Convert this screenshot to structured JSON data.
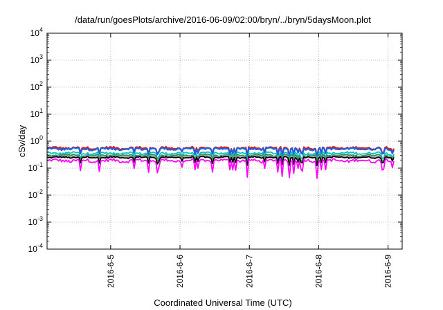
{
  "chart_data": {
    "type": "line",
    "title": "/data/run/goesPlots/archive/2016-06-09/02:00/bryn/../bryn/5daysMoon.plot",
    "xlabel": "Coordinated Universal Time (UTC)",
    "ylabel": "cSv/day",
    "y_scale": "log",
    "ylim": [
      0.0001,
      10000
    ],
    "y_ticks": [
      {
        "base": "10",
        "exp": "-4"
      },
      {
        "base": "10",
        "exp": "-3"
      },
      {
        "base": "10",
        "exp": "-2"
      },
      {
        "base": "10",
        "exp": "-1"
      },
      {
        "base": "10",
        "exp": "0"
      },
      {
        "base": "10",
        "exp": "1"
      },
      {
        "base": "10",
        "exp": "2"
      },
      {
        "base": "10",
        "exp": "3"
      },
      {
        "base": "10",
        "exp": "4"
      }
    ],
    "x_range": [
      "2016-06-04 02:00",
      "2016-06-09 02:00"
    ],
    "x_ticks": [
      "2016-6-5",
      "2016-6-6",
      "2016-6-7",
      "2016-6-8",
      "2016-6-9"
    ],
    "grid": true,
    "series": [
      {
        "color": "#e41a1c",
        "level": 0.56,
        "spread": 0.14
      },
      {
        "color": "#1f5fe0",
        "level": 0.52,
        "spread": 0.14
      },
      {
        "color": "#00c0c0",
        "level": 0.36,
        "spread": 0.14
      },
      {
        "color": "#2e8b57",
        "level": 0.3,
        "spread": 0.12
      },
      {
        "color": "#a0a0a0",
        "level": 0.27,
        "spread": 0.12
      },
      {
        "color": "#000000",
        "level": 0.25,
        "spread": 0.1
      },
      {
        "color": "#ff00ff",
        "level": 0.19,
        "spread": 0.2
      }
    ]
  }
}
